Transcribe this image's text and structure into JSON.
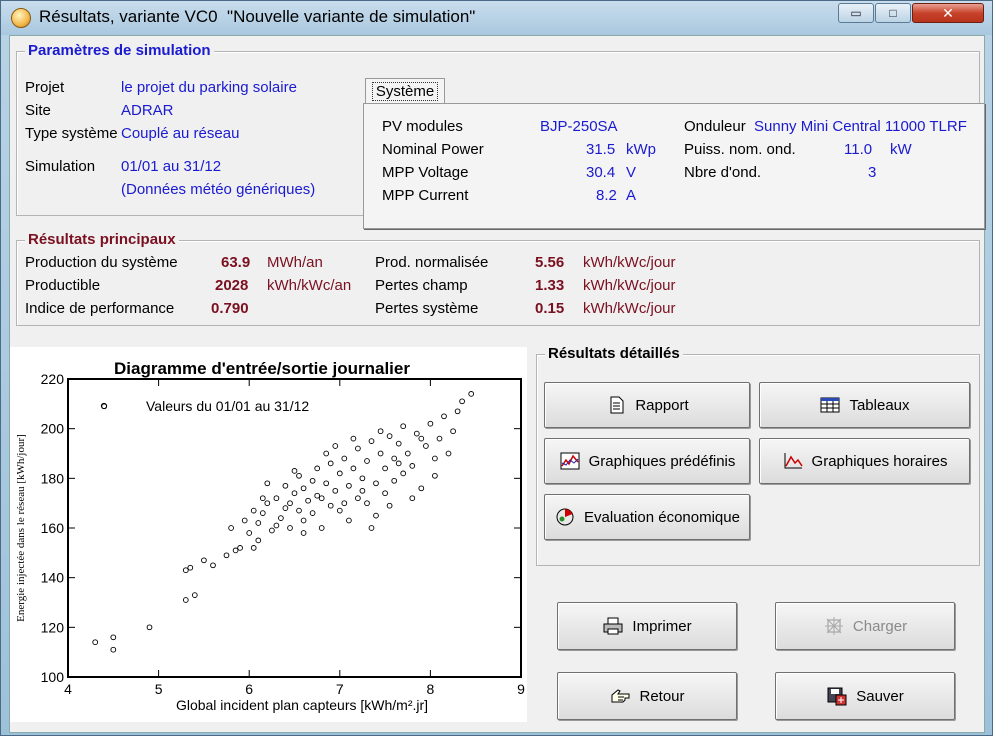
{
  "window": {
    "title": "Résultats, variante VC0  \"Nouvelle variante de simulation\"",
    "min_glyph": "▭",
    "max_glyph": "□",
    "close_glyph": "✕"
  },
  "params": {
    "title": "Paramètres de simulation",
    "rows": [
      {
        "label": "Projet",
        "value": "le projet du parking solaire"
      },
      {
        "label": "Site",
        "value": "ADRAR"
      },
      {
        "label": "Type système",
        "value": "Couplé au réseau"
      },
      {
        "label": "Simulation",
        "value": "01/01 au 31/12"
      }
    ],
    "sim_note": "(Données météo génériques)",
    "tab": "Système",
    "system": {
      "left": [
        {
          "label": "PV modules",
          "value": "BJP-250SA",
          "unit": ""
        },
        {
          "label": "Nominal Power",
          "value": "31.5",
          "unit": "kWp"
        },
        {
          "label": "MPP Voltage",
          "value": "30.4",
          "unit": "V"
        },
        {
          "label": "MPP Current",
          "value": "8.2",
          "unit": "A"
        }
      ],
      "right": [
        {
          "label": "Onduleur",
          "value": "Sunny Mini Central 11000 TLRF",
          "unit": ""
        },
        {
          "label": "Puiss. nom. ond.",
          "value": "11.0",
          "unit": "kW"
        },
        {
          "label": "Nbre d'ond.",
          "value": "3",
          "unit": ""
        }
      ]
    }
  },
  "results": {
    "title": "Résultats principaux",
    "left": [
      {
        "label": "Production du système",
        "value": "63.9",
        "unit": "MWh/an"
      },
      {
        "label": "Productible",
        "value": "2028",
        "unit": "kWh/kWc/an"
      },
      {
        "label": "Indice de performance",
        "value": "0.790",
        "unit": ""
      }
    ],
    "right": [
      {
        "label": "Prod. normalisée",
        "value": "5.56",
        "unit": "kWh/kWc/jour"
      },
      {
        "label": "Pertes champ",
        "value": "1.33",
        "unit": "kWh/kWc/jour"
      },
      {
        "label": "Pertes système",
        "value": "0.15",
        "unit": "kWh/kWc/jour"
      }
    ]
  },
  "chart_data": {
    "type": "scatter",
    "title": "Diagramme d'entrée/sortie journalier",
    "legend": "Valeurs du 01/01 au 31/12",
    "xlabel": "Global incident plan capteurs [kWh/m².jr]",
    "ylabel": "Energie injectée dans le réseau [kWh/jour]",
    "xlim": [
      4,
      9
    ],
    "ylim": [
      100,
      220
    ],
    "xticks": [
      "4",
      "5",
      "6",
      "7",
      "8",
      "9"
    ],
    "yticks": [
      "100",
      "120",
      "140",
      "160",
      "180",
      "200",
      "220"
    ],
    "grid": false,
    "points": [
      [
        4.3,
        114
      ],
      [
        4.5,
        116
      ],
      [
        4.5,
        111
      ],
      [
        4.4,
        209
      ],
      [
        4.9,
        120
      ],
      [
        5.3,
        131
      ],
      [
        5.4,
        133
      ],
      [
        5.35,
        144
      ],
      [
        5.3,
        143
      ],
      [
        5.5,
        147
      ],
      [
        5.6,
        145
      ],
      [
        5.75,
        149
      ],
      [
        5.85,
        151
      ],
      [
        5.8,
        160
      ],
      [
        5.9,
        152
      ],
      [
        5.95,
        163
      ],
      [
        6.0,
        158
      ],
      [
        6.05,
        167
      ],
      [
        6.1,
        155
      ],
      [
        6.15,
        166
      ],
      [
        6.1,
        162
      ],
      [
        6.2,
        170
      ],
      [
        6.25,
        159
      ],
      [
        6.3,
        172
      ],
      [
        6.35,
        164
      ],
      [
        6.4,
        177
      ],
      [
        6.45,
        170
      ],
      [
        6.45,
        160
      ],
      [
        6.5,
        174
      ],
      [
        6.55,
        167
      ],
      [
        6.55,
        181
      ],
      [
        6.6,
        163
      ],
      [
        6.6,
        176
      ],
      [
        6.65,
        171
      ],
      [
        6.7,
        179
      ],
      [
        6.7,
        166
      ],
      [
        6.75,
        184
      ],
      [
        6.8,
        172
      ],
      [
        6.8,
        160
      ],
      [
        6.85,
        178
      ],
      [
        6.9,
        186
      ],
      [
        6.9,
        169
      ],
      [
        6.95,
        175
      ],
      [
        7.0,
        182
      ],
      [
        7.0,
        167
      ],
      [
        7.05,
        188
      ],
      [
        7.1,
        177
      ],
      [
        7.1,
        163
      ],
      [
        7.15,
        184
      ],
      [
        7.2,
        172
      ],
      [
        7.2,
        192
      ],
      [
        7.25,
        180
      ],
      [
        7.3,
        187
      ],
      [
        7.3,
        170
      ],
      [
        7.35,
        195
      ],
      [
        7.4,
        178
      ],
      [
        7.4,
        165
      ],
      [
        7.45,
        190
      ],
      [
        7.5,
        184
      ],
      [
        7.5,
        174
      ],
      [
        7.55,
        197
      ],
      [
        7.6,
        188
      ],
      [
        7.6,
        179
      ],
      [
        7.65,
        194
      ],
      [
        7.7,
        182
      ],
      [
        7.7,
        201
      ],
      [
        7.75,
        190
      ],
      [
        7.8,
        185
      ],
      [
        7.85,
        198
      ],
      [
        7.9,
        176
      ],
      [
        7.95,
        193
      ],
      [
        8.0,
        202
      ],
      [
        8.05,
        188
      ],
      [
        8.1,
        196
      ],
      [
        8.15,
        205
      ],
      [
        8.2,
        190
      ],
      [
        8.25,
        199
      ],
      [
        8.3,
        207
      ],
      [
        8.35,
        211
      ],
      [
        8.45,
        214
      ],
      [
        6.2,
        178
      ],
      [
        6.4,
        168
      ],
      [
        6.6,
        158
      ],
      [
        6.85,
        190
      ],
      [
        7.15,
        196
      ],
      [
        7.35,
        160
      ],
      [
        7.55,
        169
      ],
      [
        7.8,
        172
      ],
      [
        6.3,
        161
      ],
      [
        6.95,
        193
      ],
      [
        6.75,
        173
      ],
      [
        7.25,
        175
      ],
      [
        6.15,
        172
      ],
      [
        7.65,
        186
      ],
      [
        7.45,
        199
      ],
      [
        6.05,
        152
      ],
      [
        6.5,
        183
      ],
      [
        7.05,
        170
      ],
      [
        7.9,
        196
      ],
      [
        8.05,
        181
      ]
    ]
  },
  "detailed": {
    "title": "Résultats détaillés",
    "rapport": "Rapport",
    "tableaux": "Tableaux",
    "graph_predef": "Graphiques prédéfinis",
    "graph_horaires": "Graphiques horaires",
    "evaluation": "Evaluation économique"
  },
  "actions": {
    "imprimer": "Imprimer",
    "charger": "Charger",
    "retour": "Retour",
    "sauver": "Sauver"
  }
}
